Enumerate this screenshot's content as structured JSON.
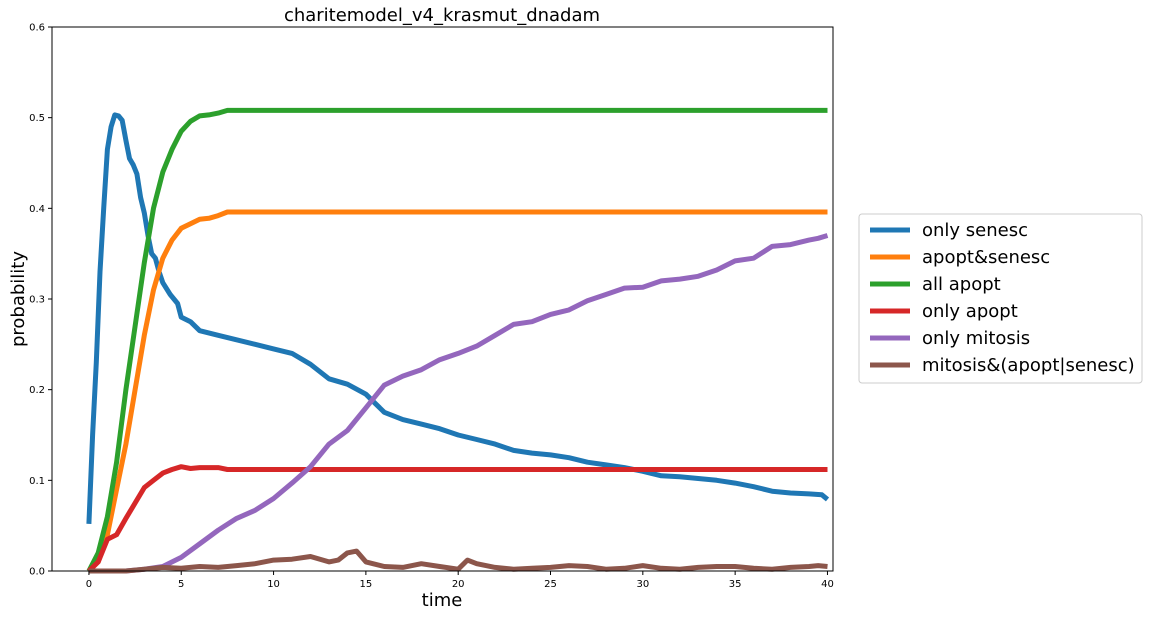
{
  "chart_data": {
    "type": "line",
    "title": "charitemodel_v4_krasmut_dnadam",
    "xlabel": "time",
    "ylabel": "probability",
    "xlim": [
      -2,
      40.3
    ],
    "ylim": [
      0,
      0.6
    ],
    "xticks": [
      0,
      5,
      10,
      15,
      20,
      25,
      30,
      35,
      40
    ],
    "yticks": [
      0.0,
      0.1,
      0.2,
      0.3,
      0.4,
      0.5,
      0.6
    ],
    "grid": false,
    "legend_position": "center-right outside",
    "series": [
      {
        "name": "only senesc",
        "color": "#1f77b4",
        "points": [
          [
            0,
            0.052
          ],
          [
            0.2,
            0.15
          ],
          [
            0.4,
            0.23
          ],
          [
            0.6,
            0.33
          ],
          [
            0.8,
            0.4
          ],
          [
            1.0,
            0.465
          ],
          [
            1.2,
            0.49
          ],
          [
            1.4,
            0.503
          ],
          [
            1.6,
            0.502
          ],
          [
            1.8,
            0.497
          ],
          [
            2.0,
            0.475
          ],
          [
            2.2,
            0.455
          ],
          [
            2.4,
            0.448
          ],
          [
            2.6,
            0.438
          ],
          [
            2.8,
            0.412
          ],
          [
            3.0,
            0.395
          ],
          [
            3.2,
            0.37
          ],
          [
            3.4,
            0.35
          ],
          [
            3.6,
            0.345
          ],
          [
            3.8,
            0.33
          ],
          [
            4.0,
            0.318
          ],
          [
            4.4,
            0.305
          ],
          [
            4.8,
            0.295
          ],
          [
            5.0,
            0.28
          ],
          [
            5.5,
            0.275
          ],
          [
            6.0,
            0.265
          ],
          [
            7.0,
            0.26
          ],
          [
            8.0,
            0.255
          ],
          [
            9.0,
            0.25
          ],
          [
            10.0,
            0.245
          ],
          [
            11.0,
            0.24
          ],
          [
            12.0,
            0.228
          ],
          [
            13.0,
            0.212
          ],
          [
            14.0,
            0.206
          ],
          [
            15.0,
            0.195
          ],
          [
            15.5,
            0.185
          ],
          [
            16.0,
            0.175
          ],
          [
            17.0,
            0.167
          ],
          [
            18.0,
            0.162
          ],
          [
            19.0,
            0.157
          ],
          [
            20.0,
            0.15
          ],
          [
            21.0,
            0.145
          ],
          [
            22.0,
            0.14
          ],
          [
            23.0,
            0.133
          ],
          [
            24.0,
            0.13
          ],
          [
            25.0,
            0.128
          ],
          [
            26.0,
            0.125
          ],
          [
            27.0,
            0.12
          ],
          [
            28.0,
            0.117
          ],
          [
            29.0,
            0.114
          ],
          [
            30.0,
            0.11
          ],
          [
            31.0,
            0.105
          ],
          [
            32.0,
            0.104
          ],
          [
            33.0,
            0.102
          ],
          [
            34.0,
            0.1
          ],
          [
            35.0,
            0.097
          ],
          [
            36.0,
            0.093
          ],
          [
            37.0,
            0.088
          ],
          [
            38.0,
            0.086
          ],
          [
            39.0,
            0.085
          ],
          [
            39.7,
            0.084
          ],
          [
            40.0,
            0.079
          ]
        ]
      },
      {
        "name": "apopt&senesc",
        "color": "#ff7f0e",
        "points": [
          [
            0,
            0
          ],
          [
            0.5,
            0.01
          ],
          [
            1.0,
            0.04
          ],
          [
            1.5,
            0.09
          ],
          [
            2.0,
            0.14
          ],
          [
            2.5,
            0.2
          ],
          [
            3.0,
            0.26
          ],
          [
            3.5,
            0.31
          ],
          [
            4.0,
            0.345
          ],
          [
            4.5,
            0.365
          ],
          [
            5.0,
            0.378
          ],
          [
            5.5,
            0.383
          ],
          [
            6.0,
            0.388
          ],
          [
            6.5,
            0.389
          ],
          [
            7.0,
            0.392
          ],
          [
            7.5,
            0.396
          ],
          [
            10.0,
            0.396
          ],
          [
            20.0,
            0.396
          ],
          [
            30.0,
            0.396
          ],
          [
            40.0,
            0.396
          ]
        ]
      },
      {
        "name": "all apopt",
        "color": "#2ca02c",
        "points": [
          [
            0,
            0
          ],
          [
            0.5,
            0.02
          ],
          [
            1.0,
            0.06
          ],
          [
            1.5,
            0.12
          ],
          [
            2.0,
            0.2
          ],
          [
            2.5,
            0.27
          ],
          [
            3.0,
            0.34
          ],
          [
            3.5,
            0.4
          ],
          [
            4.0,
            0.44
          ],
          [
            4.5,
            0.465
          ],
          [
            5.0,
            0.485
          ],
          [
            5.5,
            0.496
          ],
          [
            6.0,
            0.502
          ],
          [
            6.5,
            0.503
          ],
          [
            7.0,
            0.505
          ],
          [
            7.5,
            0.508
          ],
          [
            10.0,
            0.508
          ],
          [
            20.0,
            0.508
          ],
          [
            30.0,
            0.508
          ],
          [
            40.0,
            0.508
          ]
        ]
      },
      {
        "name": "only apopt",
        "color": "#d62728",
        "points": [
          [
            0,
            0
          ],
          [
            0.5,
            0.01
          ],
          [
            1.0,
            0.035
          ],
          [
            1.5,
            0.04
          ],
          [
            2.0,
            0.058
          ],
          [
            2.5,
            0.075
          ],
          [
            3.0,
            0.092
          ],
          [
            3.5,
            0.1
          ],
          [
            4.0,
            0.108
          ],
          [
            4.5,
            0.112
          ],
          [
            5.0,
            0.115
          ],
          [
            5.5,
            0.113
          ],
          [
            6.0,
            0.114
          ],
          [
            7.0,
            0.114
          ],
          [
            7.5,
            0.112
          ],
          [
            10.0,
            0.112
          ],
          [
            20.0,
            0.112
          ],
          [
            30.0,
            0.112
          ],
          [
            40.0,
            0.112
          ]
        ]
      },
      {
        "name": "only mitosis",
        "color": "#9467bd",
        "points": [
          [
            0,
            0
          ],
          [
            2.0,
            0
          ],
          [
            3.0,
            0.002
          ],
          [
            4.0,
            0.005
          ],
          [
            5.0,
            0.015
          ],
          [
            6.0,
            0.03
          ],
          [
            7.0,
            0.045
          ],
          [
            8.0,
            0.058
          ],
          [
            9.0,
            0.067
          ],
          [
            10.0,
            0.08
          ],
          [
            11.0,
            0.097
          ],
          [
            12.0,
            0.115
          ],
          [
            13.0,
            0.14
          ],
          [
            14.0,
            0.155
          ],
          [
            15.0,
            0.18
          ],
          [
            16.0,
            0.205
          ],
          [
            17.0,
            0.215
          ],
          [
            18.0,
            0.222
          ],
          [
            19.0,
            0.233
          ],
          [
            20.0,
            0.24
          ],
          [
            21.0,
            0.248
          ],
          [
            22.0,
            0.26
          ],
          [
            23.0,
            0.272
          ],
          [
            24.0,
            0.275
          ],
          [
            25.0,
            0.283
          ],
          [
            26.0,
            0.288
          ],
          [
            27.0,
            0.298
          ],
          [
            28.0,
            0.305
          ],
          [
            29.0,
            0.312
          ],
          [
            30.0,
            0.313
          ],
          [
            31.0,
            0.32
          ],
          [
            32.0,
            0.322
          ],
          [
            33.0,
            0.325
          ],
          [
            34.0,
            0.332
          ],
          [
            35.0,
            0.342
          ],
          [
            36.0,
            0.345
          ],
          [
            37.0,
            0.358
          ],
          [
            38.0,
            0.36
          ],
          [
            39.0,
            0.365
          ],
          [
            39.5,
            0.367
          ],
          [
            40.0,
            0.37
          ]
        ]
      },
      {
        "name": "mitosis&(apopt|senesc)",
        "color": "#8c564b",
        "points": [
          [
            0,
            0
          ],
          [
            2.0,
            0
          ],
          [
            3.0,
            0.002
          ],
          [
            4.0,
            0.004
          ],
          [
            5.0,
            0.003
          ],
          [
            6.0,
            0.005
          ],
          [
            7.0,
            0.004
          ],
          [
            8.0,
            0.006
          ],
          [
            9.0,
            0.008
          ],
          [
            10.0,
            0.012
          ],
          [
            11.0,
            0.013
          ],
          [
            12.0,
            0.016
          ],
          [
            13.0,
            0.01
          ],
          [
            13.5,
            0.012
          ],
          [
            14.0,
            0.02
          ],
          [
            14.5,
            0.022
          ],
          [
            15.0,
            0.01
          ],
          [
            16.0,
            0.005
          ],
          [
            17.0,
            0.004
          ],
          [
            18.0,
            0.008
          ],
          [
            19.0,
            0.005
          ],
          [
            20.0,
            0.002
          ],
          [
            20.5,
            0.012
          ],
          [
            21.0,
            0.008
          ],
          [
            22.0,
            0.004
          ],
          [
            23.0,
            0.002
          ],
          [
            24.0,
            0.003
          ],
          [
            25.0,
            0.004
          ],
          [
            26.0,
            0.006
          ],
          [
            27.0,
            0.005
          ],
          [
            28.0,
            0.002
          ],
          [
            29.0,
            0.003
          ],
          [
            30.0,
            0.006
          ],
          [
            31.0,
            0.003
          ],
          [
            32.0,
            0.002
          ],
          [
            33.0,
            0.004
          ],
          [
            34.0,
            0.005
          ],
          [
            35.0,
            0.005
          ],
          [
            36.0,
            0.003
          ],
          [
            37.0,
            0.002
          ],
          [
            38.0,
            0.004
          ],
          [
            39.0,
            0.005
          ],
          [
            39.5,
            0.006
          ],
          [
            40.0,
            0.005
          ]
        ]
      }
    ]
  }
}
